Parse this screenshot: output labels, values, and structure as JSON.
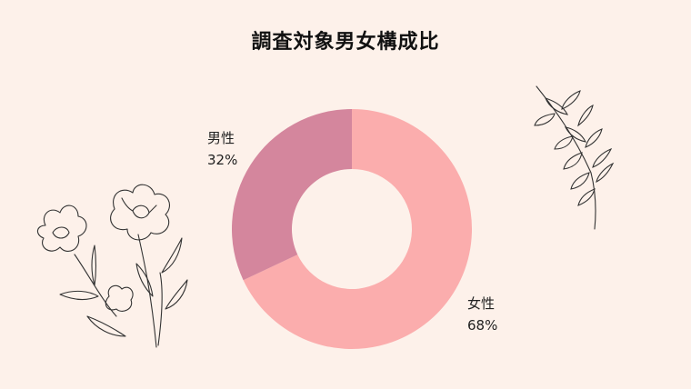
{
  "chart_data": {
    "type": "pie",
    "subtype": "donut",
    "title": "調査対象男女構成比",
    "slices": [
      {
        "label": "女性",
        "value": 68,
        "value_label": "68%",
        "color": "#fbadad"
      },
      {
        "label": "男性",
        "value": 32,
        "value_label": "32%",
        "color": "#d4869d"
      }
    ]
  },
  "colors": {
    "background": "#fdf1ea",
    "line_art": "#333333"
  },
  "decorations": [
    "flower-line-art",
    "leaf-branch-line-art"
  ]
}
